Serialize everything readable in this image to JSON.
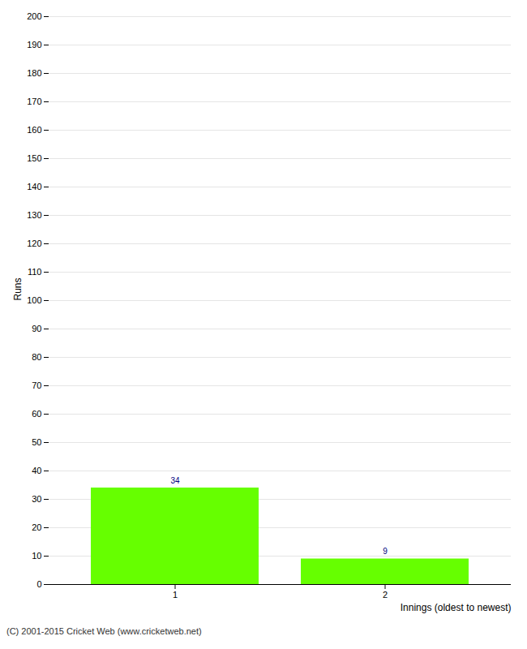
{
  "chart_data": {
    "type": "bar",
    "categories": [
      "1",
      "2"
    ],
    "values": [
      34,
      9
    ],
    "color": "#66ff00",
    "xlabel": "Innings (oldest to newest)",
    "ylabel": "Runs",
    "ylim": [
      0,
      200
    ],
    "yticks": [
      0,
      10,
      20,
      30,
      40,
      50,
      60,
      70,
      80,
      90,
      100,
      110,
      120,
      130,
      140,
      150,
      160,
      170,
      180,
      190,
      200
    ],
    "grid": true,
    "data_labels": true,
    "annotations": [
      "(C) 2001-2015 Cricket Web (www.cricketweb.net)"
    ]
  }
}
